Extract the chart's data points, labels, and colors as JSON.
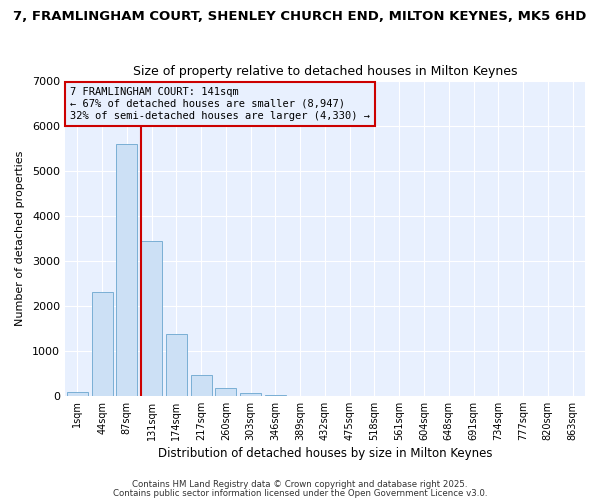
{
  "title_line1": "7, FRAMLINGHAM COURT, SHENLEY CHURCH END, MILTON KEYNES, MK5 6HD",
  "title_line2": "Size of property relative to detached houses in Milton Keynes",
  "xlabel": "Distribution of detached houses by size in Milton Keynes",
  "ylabel": "Number of detached properties",
  "bar_labels": [
    "1sqm",
    "44sqm",
    "87sqm",
    "131sqm",
    "174sqm",
    "217sqm",
    "260sqm",
    "303sqm",
    "346sqm",
    "389sqm",
    "432sqm",
    "475sqm",
    "518sqm",
    "561sqm",
    "604sqm",
    "648sqm",
    "691sqm",
    "734sqm",
    "777sqm",
    "820sqm",
    "863sqm"
  ],
  "bar_values": [
    75,
    2300,
    5600,
    3450,
    1380,
    460,
    170,
    70,
    10,
    0,
    0,
    0,
    0,
    0,
    0,
    0,
    0,
    0,
    0,
    0,
    0
  ],
  "bar_color": "#cce0f5",
  "bar_edge_color": "#7aafd4",
  "vline_index": 3,
  "vline_color": "#cc0000",
  "ylim_max": 7000,
  "yticks": [
    0,
    1000,
    2000,
    3000,
    4000,
    5000,
    6000,
    7000
  ],
  "annotation_title": "7 FRAMLINGHAM COURT: 141sqm",
  "annotation_line2": "← 67% of detached houses are smaller (8,947)",
  "annotation_line3": "32% of semi-detached houses are larger (4,330) →",
  "annotation_box_edgecolor": "#cc0000",
  "plot_bg_color": "#e8f0fe",
  "fig_bg_color": "#ffffff",
  "grid_color": "#ffffff",
  "footer1": "Contains HM Land Registry data © Crown copyright and database right 2025.",
  "footer2": "Contains public sector information licensed under the Open Government Licence v3.0."
}
